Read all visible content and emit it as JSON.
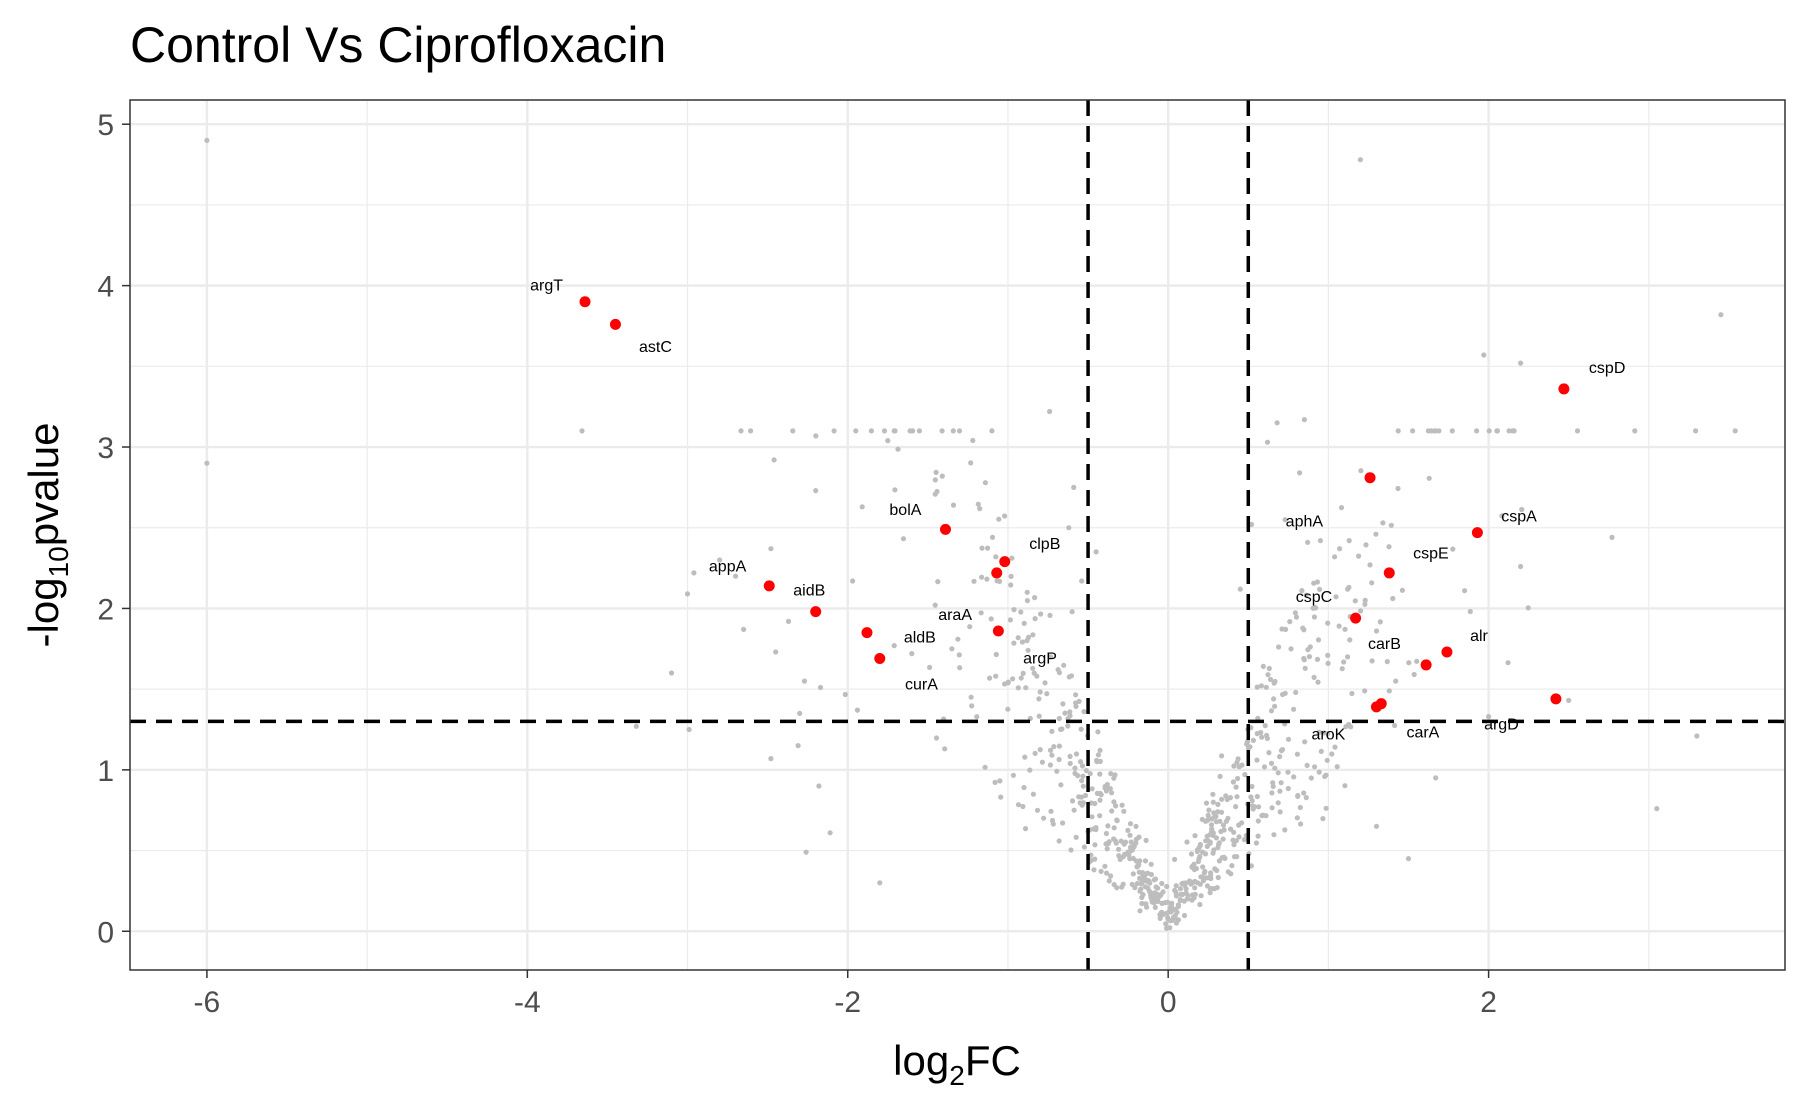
{
  "chart_data": {
    "type": "scatter",
    "title": "Control Vs Ciprofloxacin",
    "xlabel_main": "log",
    "xlabel_sub": "2",
    "xlabel_tail": "FC",
    "ylabel_prefix": "-log",
    "ylabel_sub": "10",
    "ylabel_tail": "pvalue",
    "xlim": [
      -6.48,
      3.85
    ],
    "ylim": [
      -0.24,
      5.15
    ],
    "x_ticks": [
      -6,
      -4,
      -2,
      0,
      2
    ],
    "x_tick_labels": [
      "-6",
      "-4",
      "-2",
      "0",
      "2"
    ],
    "y_ticks": [
      0,
      1,
      2,
      3,
      4,
      5
    ],
    "y_tick_labels": [
      "0",
      "1",
      "2",
      "3",
      "4",
      "5"
    ],
    "thresholds": {
      "log2fc": [
        -0.5,
        0.5
      ],
      "neg_log10_p": 1.3
    },
    "colors": {
      "significant": "#ff0000",
      "background": "#bdbdbd",
      "threshold_line": "#000000",
      "grid": "#ebebeb",
      "panel_border": "#333333"
    },
    "significant_genes": [
      {
        "gene": "argT",
        "x": -3.64,
        "y": 3.9,
        "label_dx": -0.24,
        "label_dy": 0.1
      },
      {
        "gene": "astC",
        "x": -3.45,
        "y": 3.76,
        "label_dx": 0.25,
        "label_dy": -0.14
      },
      {
        "gene": "appA",
        "x": -2.49,
        "y": 2.14,
        "label_dx": -0.26,
        "label_dy": 0.12
      },
      {
        "gene": "aidB",
        "x": -2.2,
        "y": 1.98,
        "label_dx": -0.04,
        "label_dy": 0.13
      },
      {
        "gene": "aldB",
        "x": -1.88,
        "y": 1.85,
        "label_dx": 0.33,
        "label_dy": -0.03
      },
      {
        "gene": "curA",
        "x": -1.8,
        "y": 1.69,
        "label_dx": 0.26,
        "label_dy": -0.16
      },
      {
        "gene": "bolA",
        "x": -1.39,
        "y": 2.49,
        "label_dx": -0.25,
        "label_dy": 0.12
      },
      {
        "gene": "araA",
        "x": -1.06,
        "y": 1.86,
        "label_dx": -0.27,
        "label_dy": 0.1
      },
      {
        "gene": "clpB",
        "x": -1.02,
        "y": 2.29,
        "label_dx": 0.25,
        "label_dy": 0.11
      },
      {
        "gene": "clpB_dot2",
        "x": -1.07,
        "y": 2.22,
        "hide_label": true
      },
      {
        "gene": "argP",
        "x": -1.06,
        "y": 1.86,
        "label_dx": 0.26,
        "label_dy": -0.17,
        "hide_dot": true
      },
      {
        "gene": "aphA",
        "x": 1.26,
        "y": 2.81,
        "label_dx": -0.41,
        "label_dy": -0.27
      },
      {
        "gene": "cspD",
        "x": 2.47,
        "y": 3.36,
        "label_dx": 0.27,
        "label_dy": 0.13
      },
      {
        "gene": "cspA",
        "x": 1.93,
        "y": 2.47,
        "label_dx": 0.26,
        "label_dy": 0.1
      },
      {
        "gene": "cspE",
        "x": 1.38,
        "y": 2.22,
        "label_dx": 0.26,
        "label_dy": 0.12
      },
      {
        "gene": "cspC",
        "x": 1.17,
        "y": 1.94,
        "label_dx": -0.26,
        "label_dy": 0.13
      },
      {
        "gene": "carB",
        "x": 1.61,
        "y": 1.65,
        "label_dx": -0.26,
        "label_dy": 0.13
      },
      {
        "gene": "alr",
        "x": 1.74,
        "y": 1.73,
        "label_dx": 0.2,
        "label_dy": 0.1
      },
      {
        "gene": "aroK",
        "x": 1.3,
        "y": 1.39,
        "label_dx": -0.3,
        "label_dy": -0.17
      },
      {
        "gene": "carA",
        "x": 1.33,
        "y": 1.41,
        "label_dx": 0.26,
        "label_dy": -0.18
      },
      {
        "gene": "argD",
        "x": 2.42,
        "y": 1.44,
        "label_dx": -0.34,
        "label_dy": -0.16
      }
    ]
  }
}
